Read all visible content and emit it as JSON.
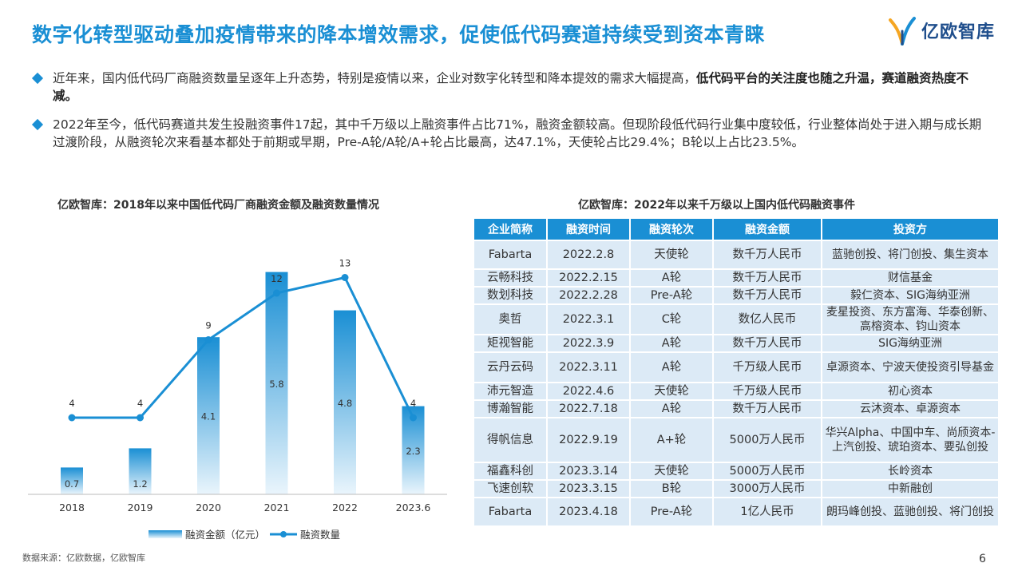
{
  "title": "数字化转型驱动叠加疫情带来的降本增效需求，促使低代码赛道持续受到资本青睐",
  "logo_text": "亿欧智库",
  "bullets": [
    {
      "text": "近年来，国内低代码厂商融资数量呈逐年上升态势，特别是疫情以来，企业对数字化转型和降本提效的需求大幅提高，",
      "bold": "低代码平台的关注度也随之升温，赛道融资热度不减。"
    },
    {
      "text": "2022年至今，低代码赛道共发生投融资事件17起，其中千万级以上融资事件占比71%，融资金额较高。但现阶段低代码行业集中度较低，行业整体尚处于进入期与成长期过渡阶段，从融资轮次来看基本都处于前期或早期，Pre-A轮/A轮/A+轮占比最高，达47.1%，天使轮占比29.4%；B轮以上占比23.5%。",
      "bold": ""
    }
  ],
  "chart_title": "亿欧智库：2018年以来中国低代码厂商融资金额及融资数量情况",
  "table_title": "亿欧智库：2022年以来千万级以上国内低代码融资事件",
  "chart_data": {
    "type": "bar",
    "categories": [
      "2018",
      "2019",
      "2020",
      "2021",
      "2022",
      "2023.6"
    ],
    "series": [
      {
        "name": "融资金额（亿元）",
        "type": "bar",
        "values": [
          0.7,
          1.2,
          4.1,
          5.8,
          4.8,
          2.3
        ]
      },
      {
        "name": "融资数量",
        "type": "line",
        "values": [
          4,
          4,
          9,
          12,
          13,
          4
        ]
      }
    ],
    "legend_position": "bottom",
    "colors": {
      "bar_top": "#1a8fd4",
      "bar_bottom": "#eaf5fc",
      "line": "#1a8fd4"
    }
  },
  "table": {
    "headers": [
      "企业简称",
      "融资时间",
      "融资轮次",
      "融资金额",
      "投资方"
    ],
    "rows": [
      [
        "Fabarta",
        "2022.2.8",
        "天使轮",
        "数千万人民币",
        "蓝驰创投、将门创投、集生资本"
      ],
      [
        "云畅科技",
        "2022.2.15",
        "A轮",
        "数千万人民币",
        "财信基金"
      ],
      [
        "数划科技",
        "2022.2.28",
        "Pre-A轮",
        "数千万人民币",
        "毅仁资本、SIG海纳亚洲"
      ],
      [
        "奥哲",
        "2022.3.1",
        "C轮",
        "数亿人民币",
        "麦星投资、东方富海、华泰创新、高榕资本、钧山资本"
      ],
      [
        "矩视智能",
        "2022.3.9",
        "A轮",
        "数千万人民币",
        "SIG海纳亚洲"
      ],
      [
        "云丹云码",
        "2022.3.11",
        "A轮",
        "千万级人民币",
        "卓源资本、宁波天使投资引导基金"
      ],
      [
        "沛元智造",
        "2022.4.6",
        "天使轮",
        "千万级人民币",
        "初心资本"
      ],
      [
        "博瀚智能",
        "2022.7.18",
        "A轮",
        "数千万人民币",
        "云沐资本、卓源资本"
      ],
      [
        "得帆信息",
        "2022.9.19",
        "A+轮",
        "5000万人民币",
        "华兴Alpha、中国中车、尚颀资本-上汽创投、琥珀资本、要弘创投"
      ],
      [
        "福鑫科创",
        "2023.3.14",
        "天使轮",
        "5000万人民币",
        "长岭资本"
      ],
      [
        "飞速创软",
        "2023.3.15",
        "B轮",
        "3000万人民币",
        "中新融创"
      ],
      [
        "Fabarta",
        "2023.4.18",
        "Pre-A轮",
        "1亿人民币",
        "朗玛峰创投、蓝驰创投、将门创投"
      ]
    ]
  },
  "source": "数据来源：亿欧数据，亿欧智库",
  "page_number": "6"
}
